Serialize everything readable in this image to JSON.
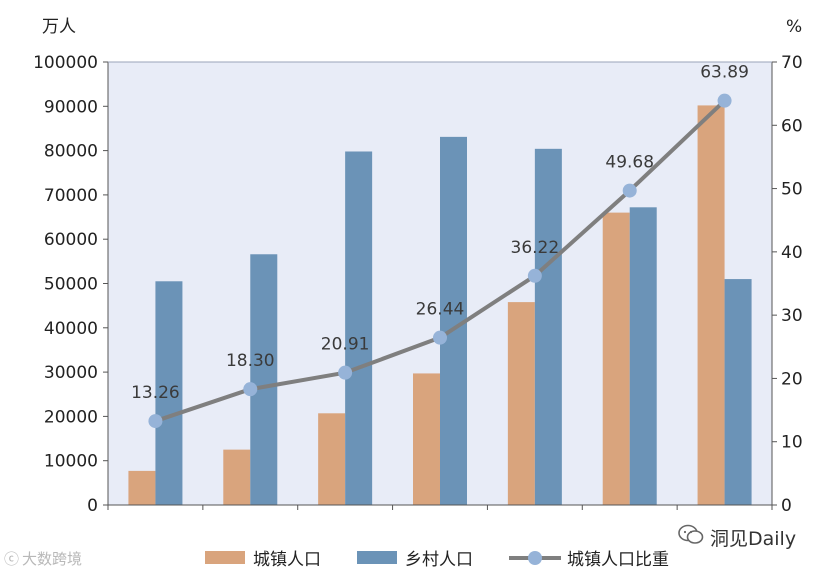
{
  "chart_data": {
    "type": "bar",
    "categories": [
      "",
      "",
      "",
      "",
      "",
      "",
      ""
    ],
    "left_unit": "万人",
    "right_unit": "%",
    "ylim_left": [
      0,
      100000
    ],
    "ylim_right": [
      0,
      70
    ],
    "left_ticks": [
      "0",
      "10000",
      "20000",
      "30000",
      "40000",
      "50000",
      "60000",
      "70000",
      "80000",
      "90000",
      "100000"
    ],
    "right_ticks": [
      "0",
      "10",
      "20",
      "30",
      "40",
      "50",
      "60",
      "70"
    ],
    "series": [
      {
        "name": "城镇人口",
        "axis": "left",
        "kind": "bar",
        "color": "#d9a47d",
        "values": [
          7700,
          12500,
          20700,
          29700,
          45800,
          66000,
          90200
        ]
      },
      {
        "name": "乡村人口",
        "axis": "left",
        "kind": "bar",
        "color": "#6b93b7",
        "values": [
          50500,
          56600,
          79800,
          83100,
          80400,
          67200,
          51000
        ]
      },
      {
        "name": "城镇人口比重",
        "axis": "right",
        "kind": "line",
        "color": "#7f7f7f",
        "marker_color": "#96b3d8",
        "values": [
          13.26,
          18.3,
          20.91,
          26.44,
          36.22,
          49.68,
          63.89
        ],
        "labels": [
          "13.26",
          "18.30",
          "20.91",
          "26.44",
          "36.22",
          "49.68",
          "63.89"
        ]
      }
    ],
    "legend_position": "bottom-center",
    "plot_background": "#e8ecf7"
  },
  "watermarks": {
    "left": "大数跨境",
    "right": "洞见Daily"
  }
}
